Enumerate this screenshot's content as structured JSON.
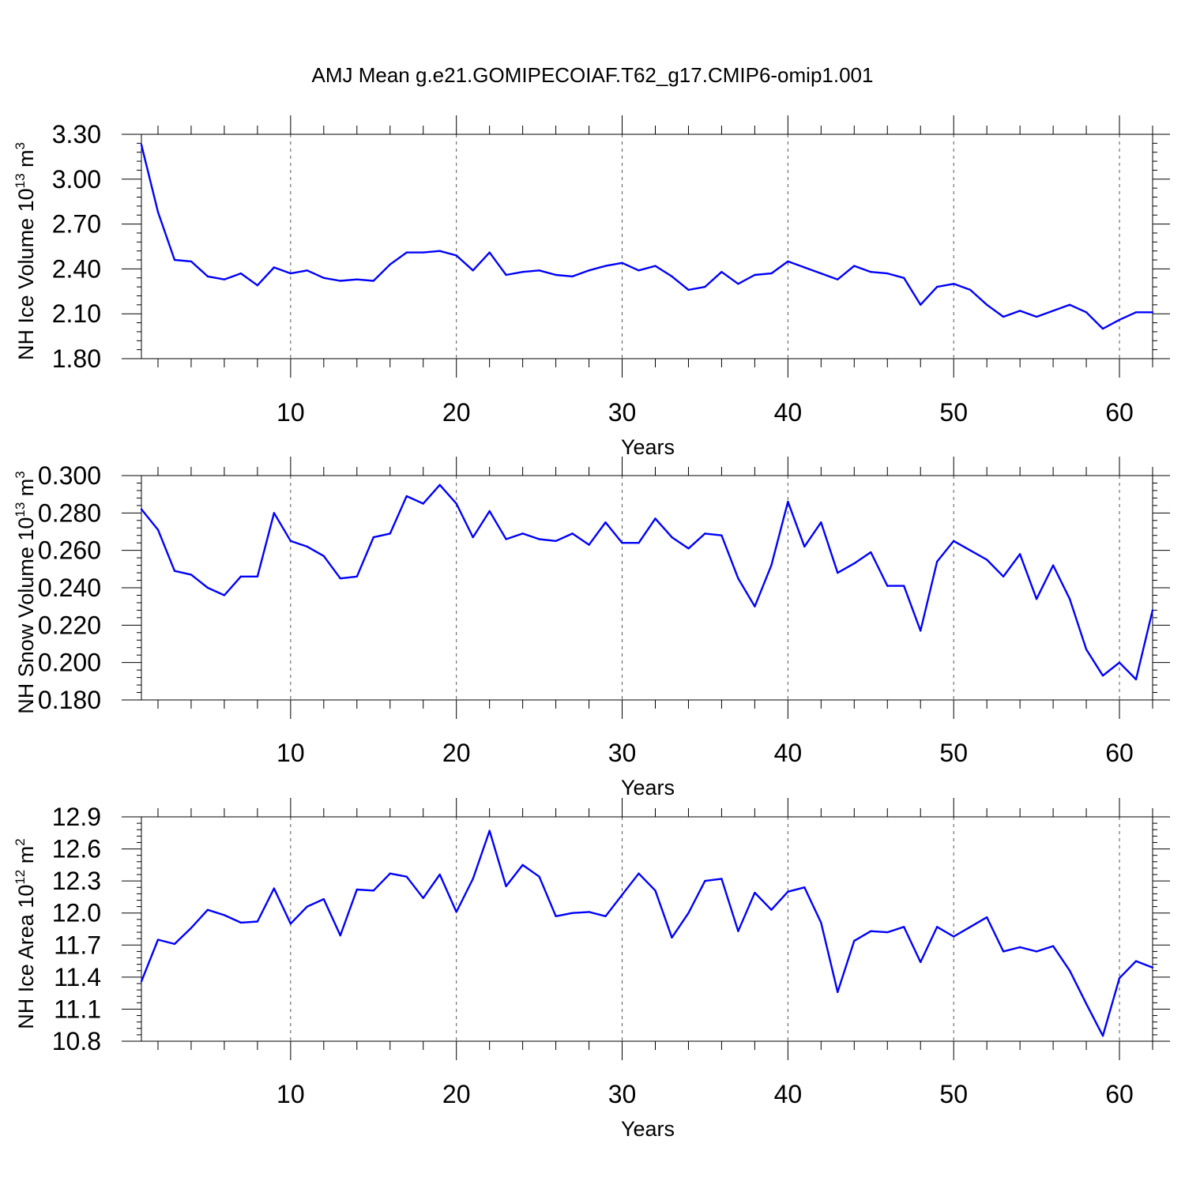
{
  "title": "AMJ Mean g.e21.GOMIPECOIAF.T62_g17.CMIP6-omip1.001",
  "line_color": "#0000ff",
  "chart_data": [
    {
      "type": "line",
      "xlabel": "Years",
      "ylabel": "NH Ice Volume 10",
      "ylabel_exp": "13",
      "ylabel_unit": " m",
      "ylabel_unit_exp": "3",
      "xlim": [
        1,
        62
      ],
      "ylim": [
        1.8,
        3.3
      ],
      "xticks": [
        10,
        20,
        30,
        40,
        50,
        60
      ],
      "xtick_labels": [
        "10",
        "20",
        "30",
        "40",
        "50",
        "60"
      ],
      "yticks": [
        1.8,
        2.1,
        2.4,
        2.7,
        3.0,
        3.3
      ],
      "ytick_labels": [
        "1.80",
        "2.10",
        "2.40",
        "2.70",
        "3.00",
        "3.30"
      ],
      "grid": "vertical dashed at major x ticks",
      "x": [
        1,
        2,
        3,
        4,
        5,
        6,
        7,
        8,
        9,
        10,
        11,
        12,
        13,
        14,
        15,
        16,
        17,
        18,
        19,
        20,
        21,
        22,
        23,
        24,
        25,
        26,
        27,
        28,
        29,
        30,
        31,
        32,
        33,
        34,
        35,
        36,
        37,
        38,
        39,
        40,
        41,
        42,
        43,
        44,
        45,
        46,
        47,
        48,
        49,
        50,
        51,
        52,
        53,
        54,
        55,
        56,
        57,
        58,
        59,
        60,
        61,
        62
      ],
      "series": [
        {
          "values": [
            3.23,
            2.78,
            2.46,
            2.45,
            2.35,
            2.33,
            2.37,
            2.29,
            2.41,
            2.37,
            2.39,
            2.34,
            2.32,
            2.33,
            2.32,
            2.43,
            2.51,
            2.51,
            2.52,
            2.49,
            2.39,
            2.51,
            2.36,
            2.38,
            2.39,
            2.36,
            2.35,
            2.39,
            2.42,
            2.44,
            2.39,
            2.42,
            2.35,
            2.26,
            2.28,
            2.38,
            2.3,
            2.36,
            2.37,
            2.45,
            2.41,
            2.37,
            2.33,
            2.42,
            2.38,
            2.37,
            2.34,
            2.16,
            2.28,
            2.3,
            2.26,
            2.16,
            2.08,
            2.12,
            2.08,
            2.12,
            2.16,
            2.11,
            2.0,
            2.06,
            2.11,
            2.11
          ]
        }
      ]
    },
    {
      "type": "line",
      "xlabel": "Years",
      "ylabel": "NH Snow Volume 10",
      "ylabel_exp": "13",
      "ylabel_unit": " m",
      "ylabel_unit_exp": "3",
      "xlim": [
        1,
        62
      ],
      "ylim": [
        0.18,
        0.3
      ],
      "xticks": [
        10,
        20,
        30,
        40,
        50,
        60
      ],
      "xtick_labels": [
        "10",
        "20",
        "30",
        "40",
        "50",
        "60"
      ],
      "yticks": [
        0.18,
        0.2,
        0.22,
        0.24,
        0.26,
        0.28,
        0.3
      ],
      "ytick_labels": [
        "0.180",
        "0.200",
        "0.220",
        "0.240",
        "0.260",
        "0.280",
        "0.300"
      ],
      "grid": "vertical dashed at major x ticks",
      "x": [
        1,
        2,
        3,
        4,
        5,
        6,
        7,
        8,
        9,
        10,
        11,
        12,
        13,
        14,
        15,
        16,
        17,
        18,
        19,
        20,
        21,
        22,
        23,
        24,
        25,
        26,
        27,
        28,
        29,
        30,
        31,
        32,
        33,
        34,
        35,
        36,
        37,
        38,
        39,
        40,
        41,
        42,
        43,
        44,
        45,
        46,
        47,
        48,
        49,
        50,
        51,
        52,
        53,
        54,
        55,
        56,
        57,
        58,
        59,
        60,
        61,
        62
      ],
      "series": [
        {
          "values": [
            0.282,
            0.271,
            0.249,
            0.247,
            0.24,
            0.236,
            0.246,
            0.246,
            0.28,
            0.265,
            0.262,
            0.257,
            0.245,
            0.246,
            0.267,
            0.269,
            0.289,
            0.285,
            0.295,
            0.285,
            0.267,
            0.281,
            0.266,
            0.269,
            0.266,
            0.265,
            0.269,
            0.263,
            0.275,
            0.264,
            0.264,
            0.277,
            0.267,
            0.261,
            0.269,
            0.268,
            0.245,
            0.23,
            0.252,
            0.286,
            0.262,
            0.275,
            0.248,
            0.253,
            0.259,
            0.241,
            0.241,
            0.217,
            0.254,
            0.265,
            0.26,
            0.255,
            0.246,
            0.258,
            0.234,
            0.252,
            0.234,
            0.207,
            0.193,
            0.2,
            0.191,
            0.228
          ]
        }
      ]
    },
    {
      "type": "line",
      "xlabel": "Years",
      "ylabel": "NH Ice Area 10",
      "ylabel_exp": "12",
      "ylabel_unit": " m",
      "ylabel_unit_exp": "2",
      "xlim": [
        1,
        62
      ],
      "ylim": [
        10.8,
        12.9
      ],
      "xticks": [
        10,
        20,
        30,
        40,
        50,
        60
      ],
      "xtick_labels": [
        "10",
        "20",
        "30",
        "40",
        "50",
        "60"
      ],
      "yticks": [
        10.8,
        11.1,
        11.4,
        11.7,
        12.0,
        12.3,
        12.6,
        12.9
      ],
      "ytick_labels": [
        "10.8",
        "11.1",
        "11.4",
        "11.7",
        "12.0",
        "12.3",
        "12.6",
        "12.9"
      ],
      "grid": "vertical dashed at major x ticks",
      "x": [
        1,
        2,
        3,
        4,
        5,
        6,
        7,
        8,
        9,
        10,
        11,
        12,
        13,
        14,
        15,
        16,
        17,
        18,
        19,
        20,
        21,
        22,
        23,
        24,
        25,
        26,
        27,
        28,
        29,
        30,
        31,
        32,
        33,
        34,
        35,
        36,
        37,
        38,
        39,
        40,
        41,
        42,
        43,
        44,
        45,
        46,
        47,
        48,
        49,
        50,
        51,
        52,
        53,
        54,
        55,
        56,
        57,
        58,
        59,
        60,
        61,
        62
      ],
      "series": [
        {
          "values": [
            11.36,
            11.75,
            11.71,
            11.86,
            12.03,
            11.98,
            11.91,
            11.92,
            12.23,
            11.9,
            12.06,
            12.13,
            11.79,
            12.22,
            12.21,
            12.37,
            12.34,
            12.14,
            12.36,
            12.01,
            12.32,
            12.77,
            12.25,
            12.45,
            12.34,
            11.97,
            12.0,
            12.01,
            11.97,
            12.17,
            12.37,
            12.21,
            11.77,
            12.0,
            12.3,
            12.32,
            11.83,
            12.19,
            12.03,
            12.2,
            12.24,
            11.91,
            11.26,
            11.74,
            11.83,
            11.82,
            11.87,
            11.54,
            11.87,
            11.78,
            11.87,
            11.96,
            11.64,
            11.68,
            11.64,
            11.69,
            11.46,
            11.15,
            10.85,
            11.39,
            11.55,
            11.49
          ]
        }
      ]
    }
  ]
}
